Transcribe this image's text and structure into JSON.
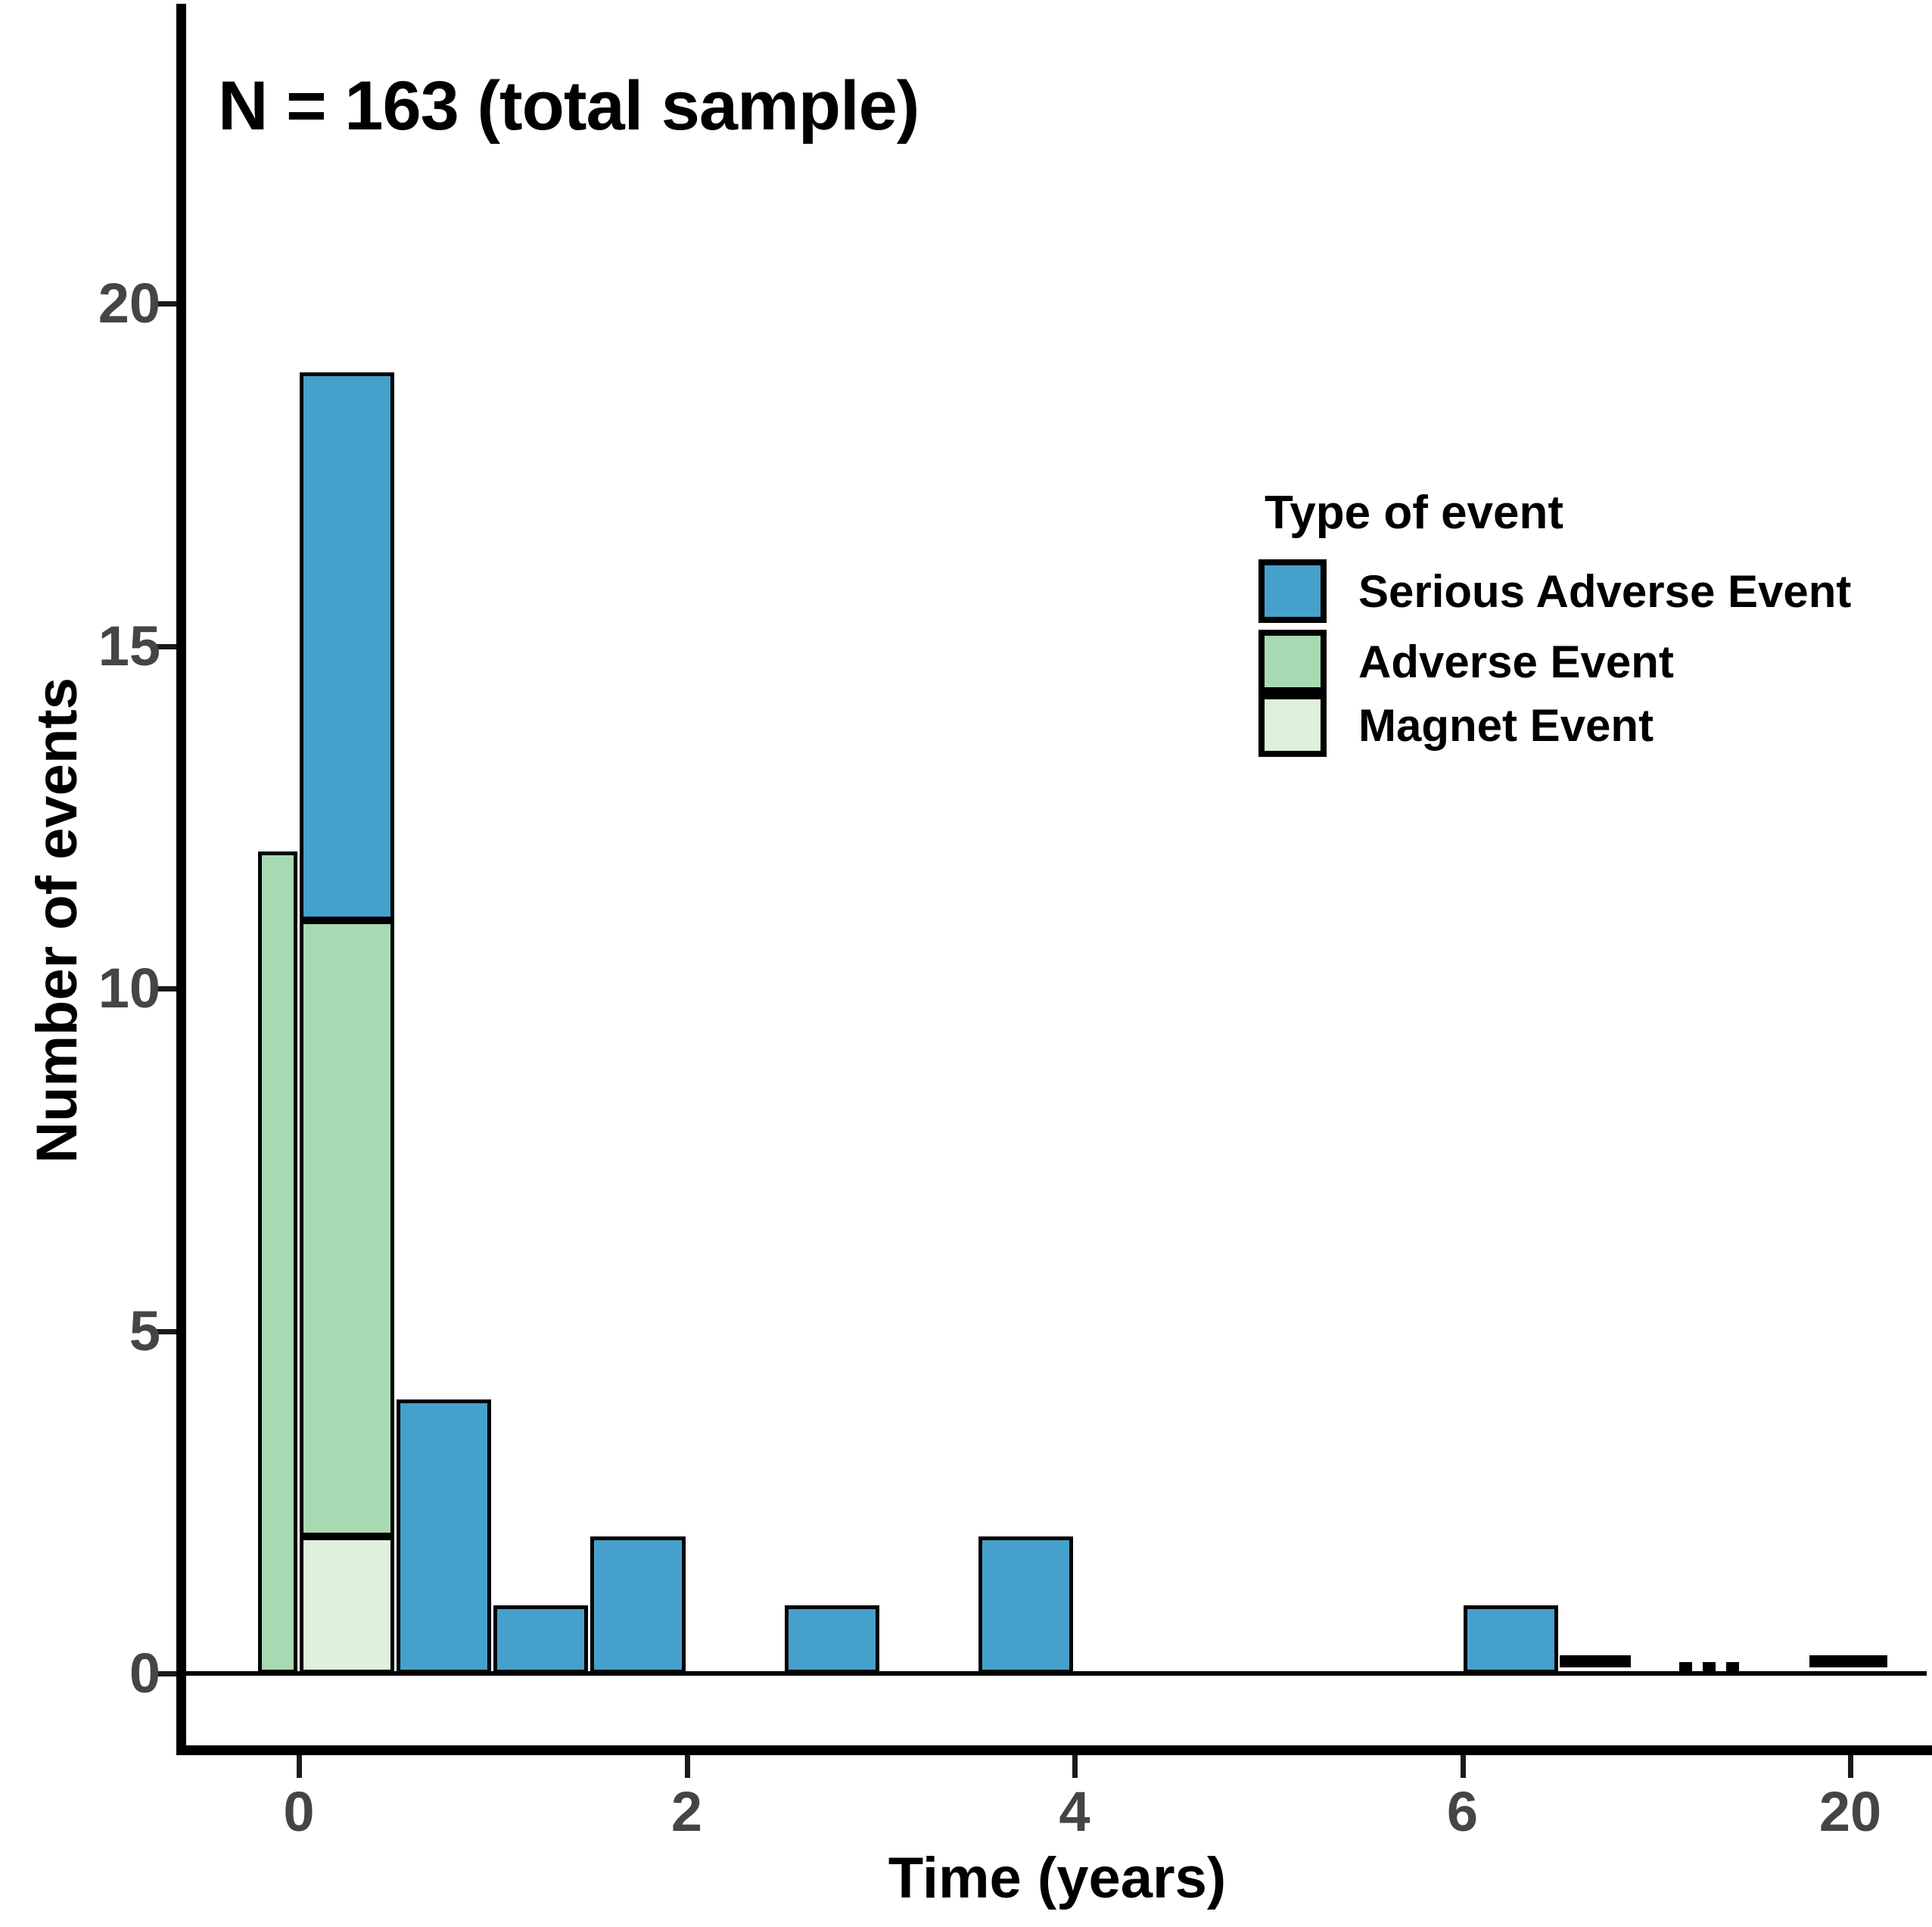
{
  "chart_data": {
    "type": "bar",
    "subtype": "stacked-histogram",
    "annotation": "N = 163 (total sample)",
    "xlabel": "Time (years)",
    "ylabel": "Number of events",
    "x_axis": {
      "tick_labels": [
        "0",
        "2",
        "4",
        "6",
        "20"
      ],
      "tick_axis_positions": [
        0,
        2,
        4,
        6,
        8
      ],
      "note": "axis broken between 6.5 and 20 years (compressed right end)"
    },
    "y_axis": {
      "ticks": [
        "0",
        "5",
        "10",
        "15",
        "20"
      ],
      "tick_values": [
        0,
        5,
        10,
        15,
        20
      ],
      "ylim": [
        0,
        20
      ]
    },
    "bin_width_years": 0.5,
    "grid": "off",
    "series": [
      {
        "name": "Serious Adverse Event",
        "color": "#45A1CB"
      },
      {
        "name": "Adverse Event",
        "color": "#A7DAB3"
      },
      {
        "name": "Magnet Event",
        "color": "#DEF2DB"
      }
    ],
    "bars": [
      {
        "x0": -0.215,
        "x1": 0,
        "segments": [
          {
            "series": "Adverse Event",
            "value": 12
          }
        ]
      },
      {
        "x0": 0,
        "x1": 0.5,
        "segments": [
          {
            "series": "Magnet Event",
            "value": 2
          },
          {
            "series": "Adverse Event",
            "value": 9
          },
          {
            "series": "Serious Adverse Event",
            "value": 8
          }
        ]
      },
      {
        "x0": 0.5,
        "x1": 1,
        "segments": [
          {
            "series": "Serious Adverse Event",
            "value": 4
          }
        ]
      },
      {
        "x0": 1,
        "x1": 1.5,
        "segments": [
          {
            "series": "Serious Adverse Event",
            "value": 1
          }
        ]
      },
      {
        "x0": 1.5,
        "x1": 2,
        "segments": [
          {
            "series": "Serious Adverse Event",
            "value": 2
          }
        ]
      },
      {
        "x0": 2.5,
        "x1": 3,
        "segments": [
          {
            "series": "Serious Adverse Event",
            "value": 1
          }
        ]
      },
      {
        "x0": 3.5,
        "x1": 4,
        "segments": [
          {
            "series": "Serious Adverse Event",
            "value": 2
          }
        ]
      },
      {
        "x0": 6,
        "x1": 6.5,
        "segments": [
          {
            "series": "Serious Adverse Event",
            "value": 1
          }
        ]
      }
    ],
    "break_marks": [
      {
        "type": "dash",
        "from": 6.5,
        "to": 6.87
      },
      {
        "type": "ellipsis",
        "at": 7.27
      },
      {
        "type": "dash",
        "from": 7.79,
        "to": 8.19
      }
    ],
    "legend": {
      "title": "Type of event",
      "position": "right-center",
      "entries": [
        {
          "label": "Serious Adverse Event",
          "color": "#45A1CB"
        },
        {
          "label": "Adverse Event",
          "color": "#A7DAB3"
        },
        {
          "label": "Magnet Event",
          "color": "#DEF2DB"
        }
      ]
    }
  }
}
